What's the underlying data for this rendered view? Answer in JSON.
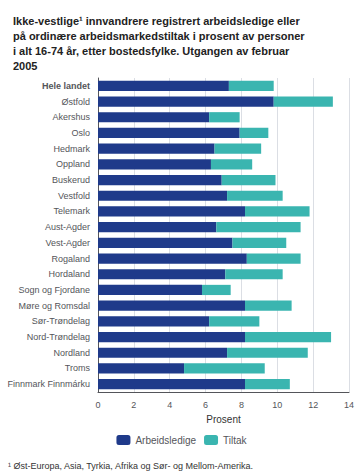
{
  "chart_data": {
    "type": "bar",
    "orientation": "horizontal",
    "stacked": true,
    "title": "Ikke-vestlige¹ innvandrere registrert arbeidsledige eller\npå ordinære arbeidsmarkedstiltak i prosent av personer\ni alt 16-74 år, etter bostedsfylke. Utgangen av februar\n2005",
    "footnote": "¹ Øst-Europa, Asia, Tyrkia, Afrika og Sør- og Mellom-Amerika.",
    "xlabel": "Prosent",
    "categories": [
      "Hele landet",
      "Østfold",
      "Akershus",
      "Oslo",
      "Hedmark",
      "Oppland",
      "Buskerud",
      "Vestfold",
      "Telemark",
      "Aust-Agder",
      "Vest-Agder",
      "Rogaland",
      "Hordaland",
      "Sogn og Fjordane",
      "Møre og Romsdal",
      "Sør-Trøndelag",
      "Nord-Trøndelag",
      "Nordland",
      "Troms",
      "Finnmark Finnmárku"
    ],
    "series": [
      {
        "name": "Arbeidsledige",
        "color": "#1f3a8a",
        "values": [
          7.3,
          9.8,
          6.2,
          7.9,
          6.5,
          6.3,
          6.9,
          7.2,
          8.2,
          6.6,
          7.5,
          8.3,
          7.1,
          5.8,
          8.2,
          6.2,
          8.2,
          7.2,
          4.8,
          8.2
        ]
      },
      {
        "name": "Tiltak",
        "color": "#3ab5b0",
        "values": [
          2.5,
          3.3,
          1.7,
          1.6,
          2.6,
          2.3,
          3.0,
          3.1,
          3.6,
          4.7,
          3.0,
          3.0,
          3.2,
          1.6,
          2.6,
          2.8,
          4.8,
          4.5,
          4.5,
          2.5
        ]
      }
    ],
    "xlim": [
      0,
      14
    ],
    "xticks": [
      0,
      2,
      4,
      6,
      8,
      10,
      12,
      14
    ],
    "grid": true,
    "legend": "bottom"
  }
}
